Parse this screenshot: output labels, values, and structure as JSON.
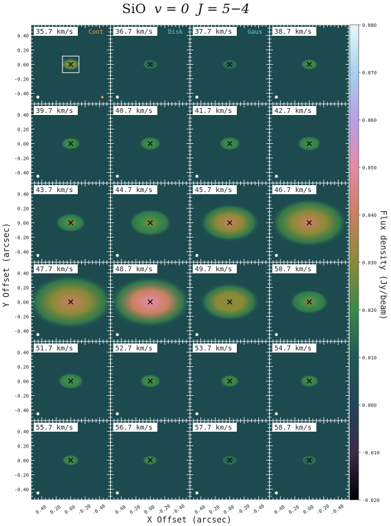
{
  "title": {
    "species": "SiO",
    "v_part": "v = 0",
    "j_part": "J = 5−4"
  },
  "chart_data": {
    "type": "heatmap",
    "title": "SiO v = 0 J = 5−4",
    "xlabel": "X Offset (arcsec)",
    "ylabel": "Y Offset (arcsec)",
    "colorbar_label": "Flux density (Jy/beam)",
    "colorbar_range": [
      -0.02,
      0.08
    ],
    "colorbar_ticks": [
      "0.080",
      "0.070",
      "0.060",
      "0.050",
      "0.040",
      "0.030",
      "0.020",
      "0.010",
      "0.000",
      "-0.010",
      "-0.020"
    ],
    "x_ticks": [
      "0.40",
      "0.20",
      "0.00",
      "-0.20",
      "-0.40"
    ],
    "y_ticks": [
      "0.40",
      "0.20",
      "0.00",
      "-0.20",
      "-0.40"
    ],
    "legend": [
      {
        "label": "Cont",
        "color": "#e8a13a"
      },
      {
        "label": "Disk",
        "color": "#5cc8e8"
      },
      {
        "label": "Gaus",
        "color": "#5cc8e8"
      }
    ],
    "channels": [
      {
        "velocity": "35.7 km/s",
        "peak": 0.03,
        "extent": 0.09
      },
      {
        "velocity": "36.7 km/s",
        "peak": 0.012,
        "extent": 0.07
      },
      {
        "velocity": "37.7 km/s",
        "peak": 0.013,
        "extent": 0.07
      },
      {
        "velocity": "38.7 km/s",
        "peak": 0.015,
        "extent": 0.08
      },
      {
        "velocity": "39.7 km/s",
        "peak": 0.018,
        "extent": 0.09
      },
      {
        "velocity": "40.7 km/s",
        "peak": 0.02,
        "extent": 0.1
      },
      {
        "velocity": "41.7 km/s",
        "peak": 0.018,
        "extent": 0.1
      },
      {
        "velocity": "42.7 km/s",
        "peak": 0.02,
        "extent": 0.11
      },
      {
        "velocity": "43.7 km/s",
        "peak": 0.022,
        "extent": 0.14
      },
      {
        "velocity": "44.7 km/s",
        "peak": 0.025,
        "extent": 0.2
      },
      {
        "velocity": "45.7 km/s",
        "peak": 0.032,
        "extent": 0.28
      },
      {
        "velocity": "46.7 km/s",
        "peak": 0.034,
        "extent": 0.36
      },
      {
        "velocity": "47.7 km/s",
        "peak": 0.036,
        "extent": 0.4
      },
      {
        "velocity": "48.7 km/s",
        "peak": 0.045,
        "extent": 0.38
      },
      {
        "velocity": "49.7 km/s",
        "peak": 0.03,
        "extent": 0.28
      },
      {
        "velocity": "50.7 km/s",
        "peak": 0.022,
        "extent": 0.18
      },
      {
        "velocity": "51.7 km/s",
        "peak": 0.018,
        "extent": 0.12
      },
      {
        "velocity": "52.7 km/s",
        "peak": 0.016,
        "extent": 0.1
      },
      {
        "velocity": "53.7 km/s",
        "peak": 0.015,
        "extent": 0.09
      },
      {
        "velocity": "54.7 km/s",
        "peak": 0.016,
        "extent": 0.09
      },
      {
        "velocity": "55.7 km/s",
        "peak": 0.017,
        "extent": 0.08
      },
      {
        "velocity": "56.7 km/s",
        "peak": 0.014,
        "extent": 0.07
      },
      {
        "velocity": "57.7 km/s",
        "peak": 0.013,
        "extent": 0.07
      },
      {
        "velocity": "58.7 km/s",
        "peak": 0.013,
        "extent": 0.07
      }
    ]
  }
}
